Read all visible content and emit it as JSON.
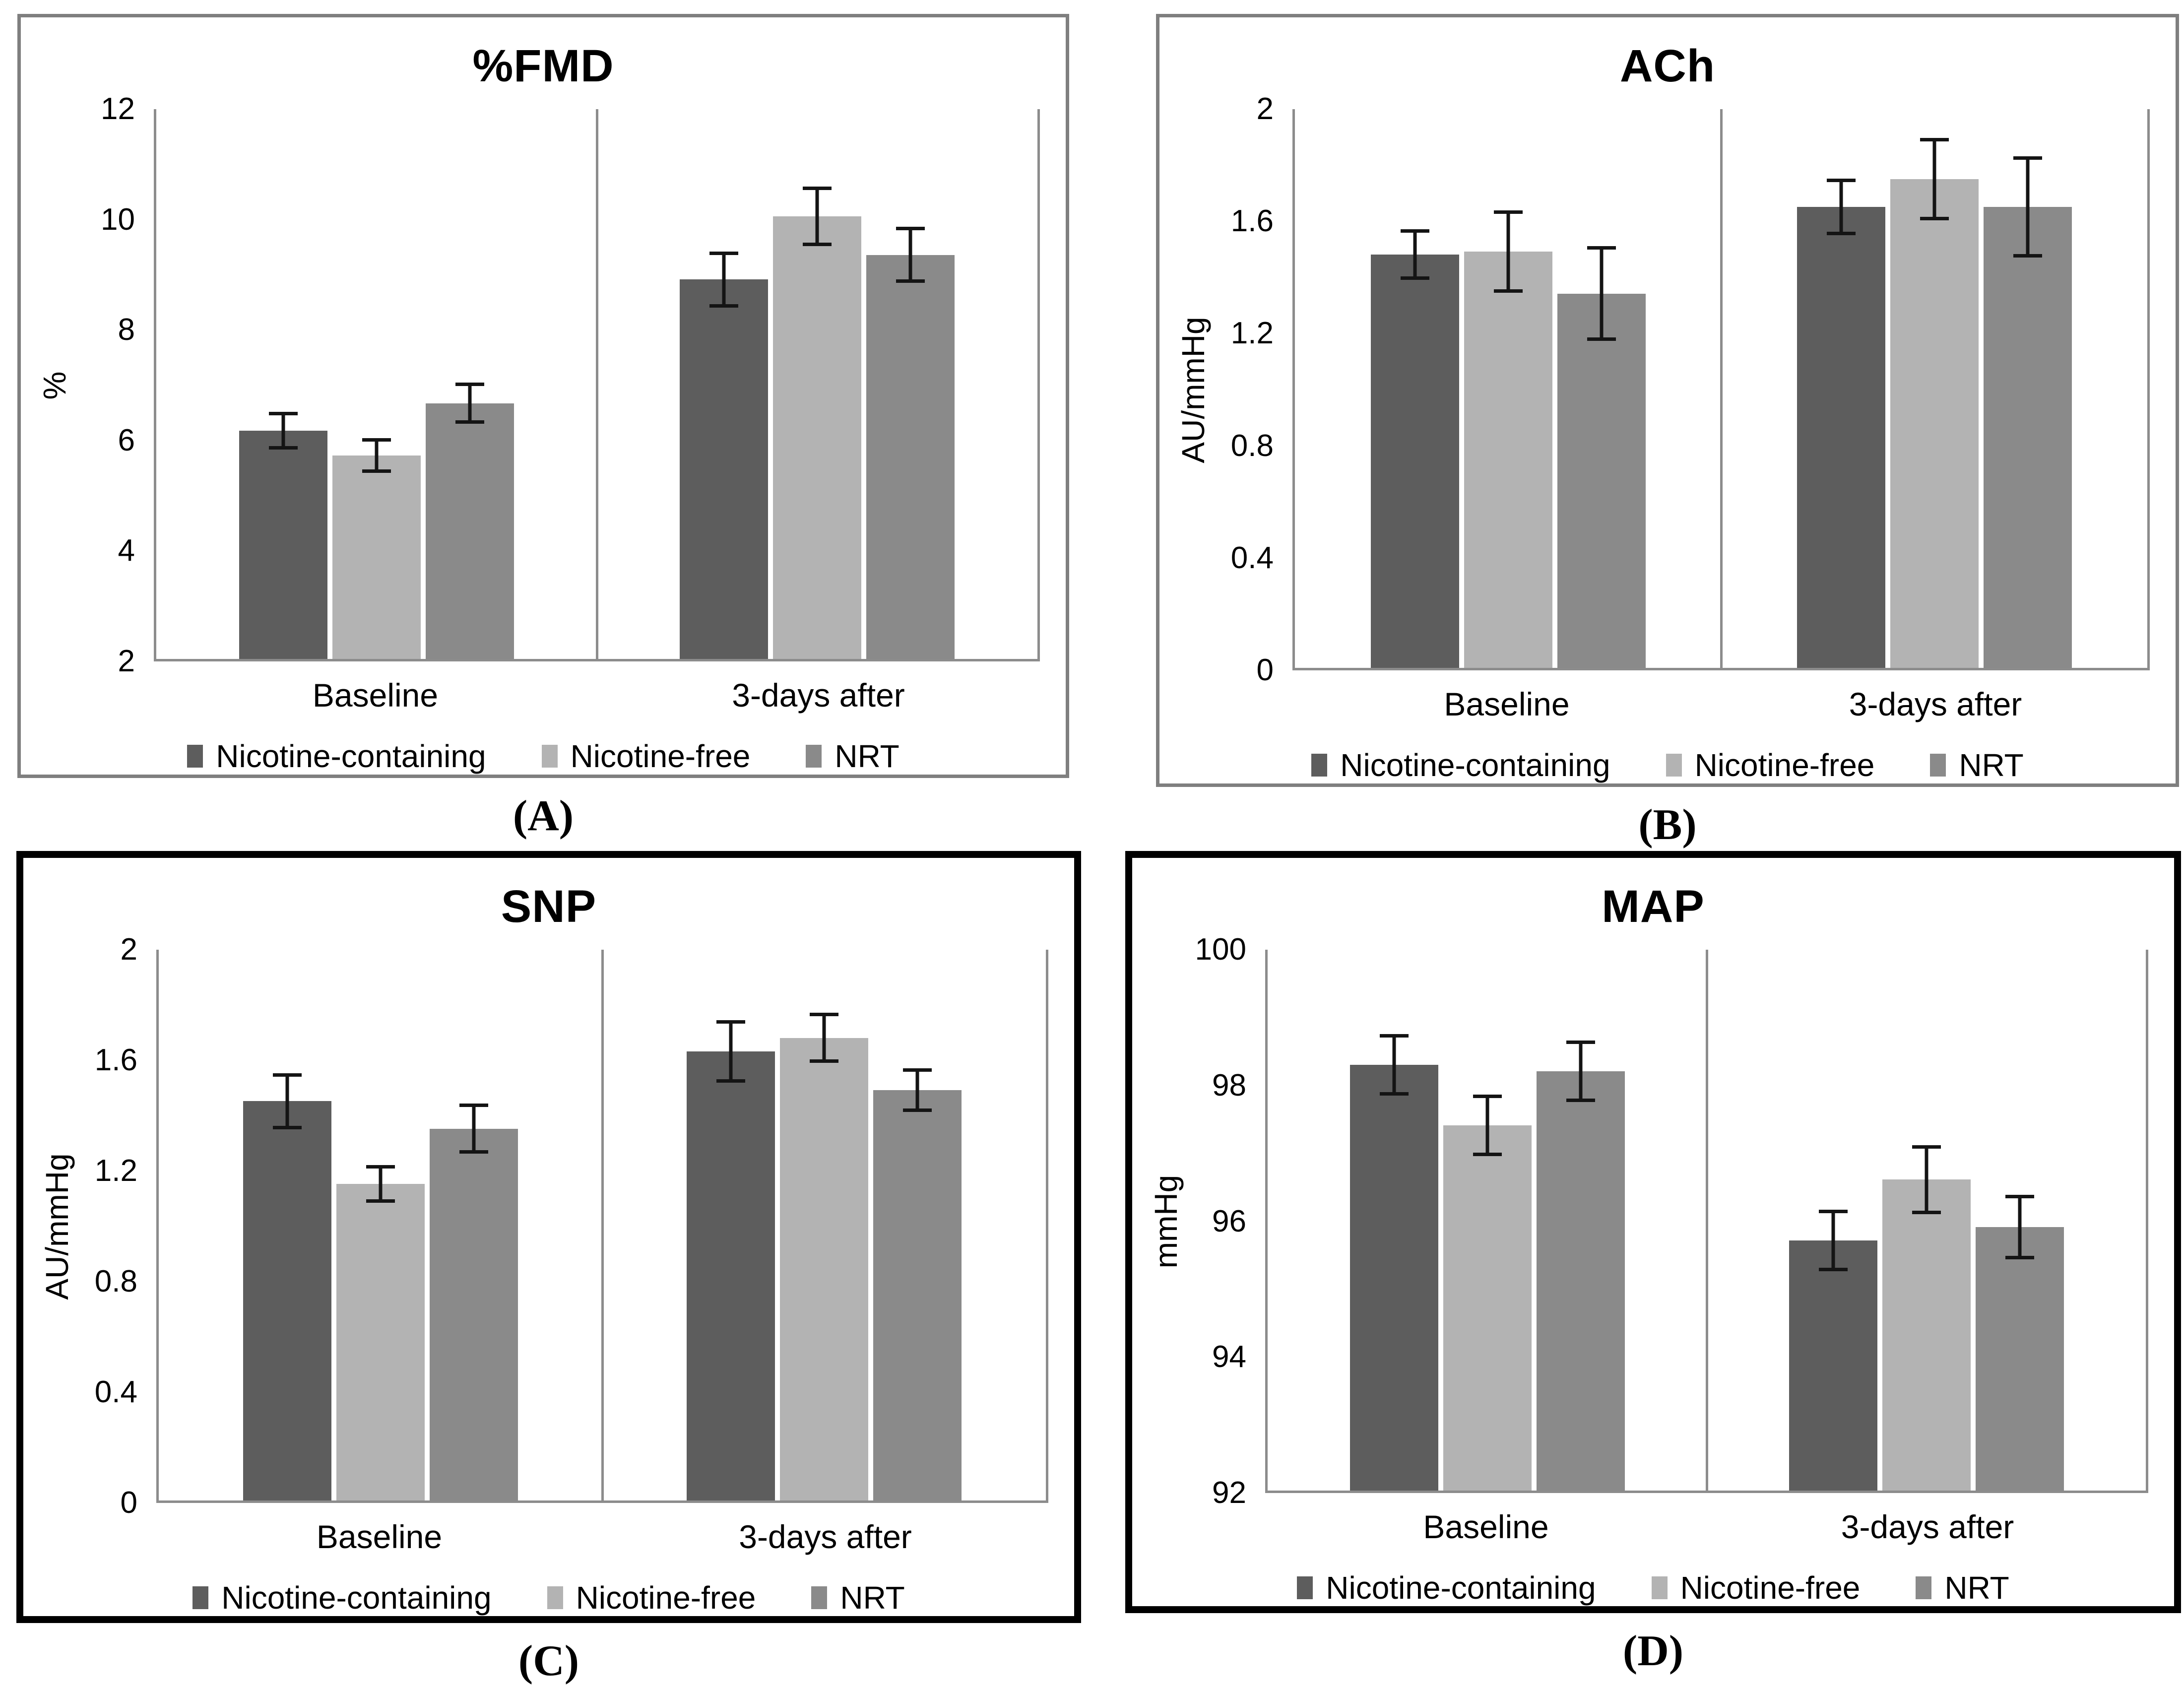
{
  "figure": {
    "background": "#ffffff",
    "categories": [
      "Baseline",
      "3-days after"
    ],
    "legend": [
      {
        "label": "Nicotine-containing",
        "color": "#5d5d5d"
      },
      {
        "label": "Nicotine-free",
        "color": "#b3b3b3"
      },
      {
        "label": "NRT",
        "color": "#8a8a8a"
      }
    ],
    "colors": {
      "axis_line": "#8c8c8c",
      "error_bar": "#141414",
      "top_panel_border": "#7f7f7f",
      "bottom_panel_border": "#000000"
    }
  },
  "chart_data": [
    {
      "type": "bar",
      "panel": "(A)",
      "title": "%FMD",
      "ylabel": "%",
      "ylim": [
        2,
        12
      ],
      "yticks": [
        "2",
        "4",
        "6",
        "8",
        "10",
        "12"
      ],
      "categories": [
        "Baseline",
        "3-days after"
      ],
      "grid": false,
      "legend_position": "bottom",
      "series": [
        {
          "name": "Nicotine-containing",
          "values": [
            6.15,
            8.9
          ],
          "errors": [
            0.3,
            0.45
          ]
        },
        {
          "name": "Nicotine-free",
          "values": [
            5.7,
            10.05
          ],
          "errors": [
            0.28,
            0.48
          ]
        },
        {
          "name": "NRT",
          "values": [
            6.65,
            9.35
          ],
          "errors": [
            0.33,
            0.45
          ]
        }
      ]
    },
    {
      "type": "bar",
      "panel": "(B)",
      "title": "ACh",
      "ylabel": "AU/mmHg",
      "ylim": [
        0,
        2
      ],
      "yticks": [
        "0",
        "0.4",
        "0.8",
        "1.2",
        "1.6",
        "2"
      ],
      "categories": [
        "Baseline",
        "3-days after"
      ],
      "grid": false,
      "legend_position": "bottom",
      "series": [
        {
          "name": "Nicotine-containing",
          "values": [
            1.48,
            1.65
          ],
          "errors": [
            0.08,
            0.09
          ]
        },
        {
          "name": "Nicotine-free",
          "values": [
            1.49,
            1.75
          ],
          "errors": [
            0.13,
            0.13
          ]
        },
        {
          "name": "NRT",
          "values": [
            1.34,
            1.65
          ],
          "errors": [
            0.15,
            0.16
          ]
        }
      ]
    },
    {
      "type": "bar",
      "panel": "(C)",
      "title": "SNP",
      "ylabel": "AU/mmHg",
      "ylim": [
        0,
        2
      ],
      "yticks": [
        "0",
        "0.4",
        "0.8",
        "1.2",
        "1.6",
        "2"
      ],
      "categories": [
        "Baseline",
        "3-days after"
      ],
      "grid": false,
      "legend_position": "bottom",
      "series": [
        {
          "name": "Nicotine-containing",
          "values": [
            1.45,
            1.63
          ],
          "errors": [
            0.09,
            0.1
          ]
        },
        {
          "name": "Nicotine-free",
          "values": [
            1.15,
            1.68
          ],
          "errors": [
            0.06,
            0.08
          ]
        },
        {
          "name": "NRT",
          "values": [
            1.35,
            1.49
          ],
          "errors": [
            0.08,
            0.07
          ]
        }
      ]
    },
    {
      "type": "bar",
      "panel": "(D)",
      "title": "MAP",
      "ylabel": "mmHg",
      "ylim": [
        92,
        100
      ],
      "yticks": [
        "92",
        "94",
        "96",
        "98",
        "100"
      ],
      "categories": [
        "Baseline",
        "3-days after"
      ],
      "grid": false,
      "legend_position": "bottom",
      "series": [
        {
          "name": "Nicotine-containing",
          "values": [
            98.3,
            95.7
          ],
          "errors": [
            0.4,
            0.4
          ]
        },
        {
          "name": "Nicotine-free",
          "values": [
            97.4,
            96.6
          ],
          "errors": [
            0.4,
            0.45
          ]
        },
        {
          "name": "NRT",
          "values": [
            98.2,
            95.9
          ],
          "errors": [
            0.4,
            0.42
          ]
        }
      ]
    }
  ]
}
